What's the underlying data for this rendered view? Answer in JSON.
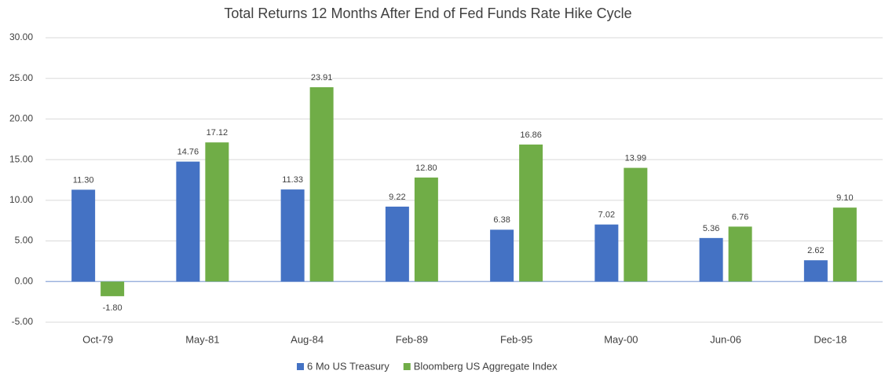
{
  "chart_data": {
    "type": "bar",
    "title": "Total Returns 12 Months After End of Fed Funds Rate Hike Cycle",
    "categories": [
      "Oct-79",
      "May-81",
      "Aug-84",
      "Feb-89",
      "Feb-95",
      "May-00",
      "Jun-06",
      "Dec-18"
    ],
    "series": [
      {
        "name": "6 Mo US Treasury",
        "color": "#4472c4",
        "values": [
          11.3,
          14.76,
          11.33,
          9.22,
          6.38,
          7.02,
          5.36,
          2.62
        ],
        "value_labels": [
          "11.30",
          "14.76",
          "11.33",
          "9.22",
          "6.38",
          "7.02",
          "5.36",
          "2.62"
        ]
      },
      {
        "name": "Bloomberg US Aggregate Index",
        "color": "#70ad47",
        "values": [
          -1.8,
          17.12,
          23.91,
          12.8,
          16.86,
          13.99,
          6.76,
          9.1
        ],
        "value_labels": [
          "-1.80",
          "17.12",
          "23.91",
          "12.80",
          "16.86",
          "13.99",
          "6.76",
          "9.10"
        ]
      }
    ],
    "ylim": [
      -5,
      30
    ],
    "yticks": [
      {
        "value": -5,
        "label": "-5.00"
      },
      {
        "value": 0,
        "label": "0.00"
      },
      {
        "value": 5,
        "label": "5.00"
      },
      {
        "value": 10,
        "label": "10.00"
      },
      {
        "value": 15,
        "label": "15.00"
      },
      {
        "value": 20,
        "label": "20.00"
      },
      {
        "value": 25,
        "label": "25.00"
      },
      {
        "value": 30,
        "label": "30.00"
      }
    ],
    "grid": true,
    "legend": "bottom"
  }
}
